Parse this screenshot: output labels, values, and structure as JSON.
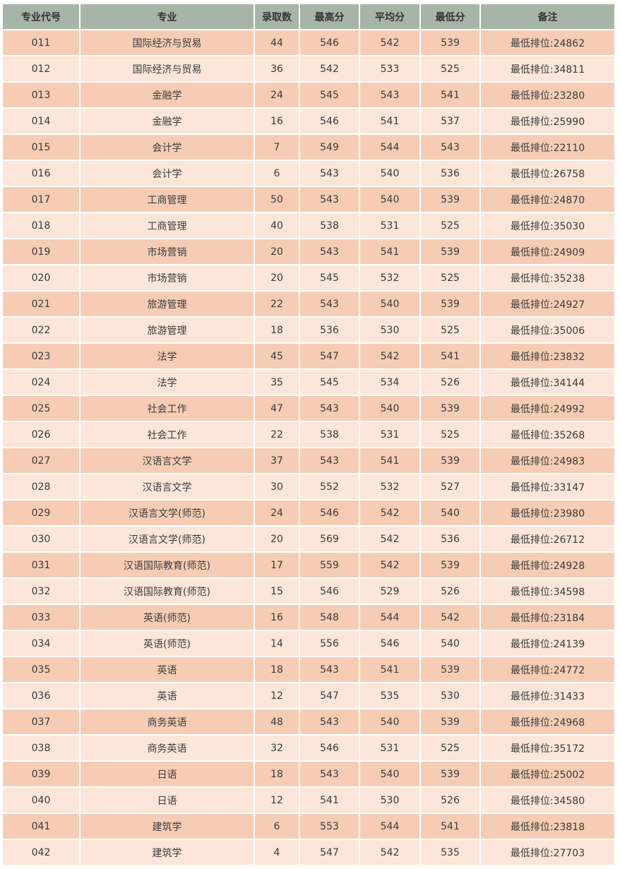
{
  "table": {
    "headers": [
      "专业代号",
      "专业",
      "录取数",
      "最高分",
      "平均分",
      "最低分",
      "备注"
    ],
    "colors": {
      "header": "#a7b4a8",
      "row_odd": "#f6cdb4",
      "row_even": "#fce6d9"
    },
    "rows": [
      [
        "011",
        "国际经济与贸易",
        "44",
        "546",
        "542",
        "539",
        "最低排位:24862"
      ],
      [
        "012",
        "国际经济与贸易",
        "36",
        "542",
        "533",
        "525",
        "最低排位:34811"
      ],
      [
        "013",
        "金融学",
        "24",
        "545",
        "543",
        "541",
        "最低排位:23280"
      ],
      [
        "014",
        "金融学",
        "16",
        "546",
        "541",
        "537",
        "最低排位:25990"
      ],
      [
        "015",
        "会计学",
        "7",
        "549",
        "544",
        "543",
        "最低排位:22110"
      ],
      [
        "016",
        "会计学",
        "6",
        "543",
        "540",
        "536",
        "最低排位:26758"
      ],
      [
        "017",
        "工商管理",
        "50",
        "543",
        "540",
        "539",
        "最低排位:24870"
      ],
      [
        "018",
        "工商管理",
        "40",
        "538",
        "531",
        "525",
        "最低排位:35030"
      ],
      [
        "019",
        "市场营销",
        "20",
        "543",
        "541",
        "539",
        "最低排位:24909"
      ],
      [
        "020",
        "市场营销",
        "20",
        "545",
        "532",
        "525",
        "最低排位:35238"
      ],
      [
        "021",
        "旅游管理",
        "22",
        "543",
        "540",
        "539",
        "最低排位:24927"
      ],
      [
        "022",
        "旅游管理",
        "18",
        "536",
        "530",
        "525",
        "最低排位:35006"
      ],
      [
        "023",
        "法学",
        "45",
        "547",
        "542",
        "541",
        "最低排位:23832"
      ],
      [
        "024",
        "法学",
        "35",
        "545",
        "534",
        "526",
        "最低排位:34144"
      ],
      [
        "025",
        "社会工作",
        "47",
        "543",
        "540",
        "539",
        "最低排位:24992"
      ],
      [
        "026",
        "社会工作",
        "22",
        "538",
        "531",
        "525",
        "最低排位:35268"
      ],
      [
        "027",
        "汉语言文学",
        "37",
        "543",
        "541",
        "539",
        "最低排位:24983"
      ],
      [
        "028",
        "汉语言文学",
        "30",
        "552",
        "532",
        "527",
        "最低排位:33147"
      ],
      [
        "029",
        "汉语言文学(师范)",
        "24",
        "546",
        "542",
        "540",
        "最低排位:23980"
      ],
      [
        "030",
        "汉语言文学(师范)",
        "20",
        "569",
        "542",
        "536",
        "最低排位:26712"
      ],
      [
        "031",
        "汉语国际教育(师范)",
        "17",
        "559",
        "542",
        "539",
        "最低排位:24928"
      ],
      [
        "032",
        "汉语国际教育(师范)",
        "15",
        "546",
        "529",
        "526",
        "最低排位:34598"
      ],
      [
        "033",
        "英语(师范)",
        "16",
        "548",
        "544",
        "542",
        "最低排位:23184"
      ],
      [
        "034",
        "英语(师范)",
        "14",
        "556",
        "546",
        "540",
        "最低排位:24139"
      ],
      [
        "035",
        "英语",
        "18",
        "543",
        "541",
        "539",
        "最低排位:24772"
      ],
      [
        "036",
        "英语",
        "12",
        "547",
        "535",
        "530",
        "最低排位:31433"
      ],
      [
        "037",
        "商务英语",
        "48",
        "543",
        "540",
        "539",
        "最低排位:24968"
      ],
      [
        "038",
        "商务英语",
        "32",
        "546",
        "531",
        "525",
        "最低排位:35172"
      ],
      [
        "039",
        "日语",
        "18",
        "543",
        "540",
        "539",
        "最低排位:25002"
      ],
      [
        "040",
        "日语",
        "12",
        "541",
        "530",
        "526",
        "最低排位:34580"
      ],
      [
        "041",
        "建筑学",
        "6",
        "553",
        "544",
        "541",
        "最低排位:23818"
      ],
      [
        "042",
        "建筑学",
        "4",
        "547",
        "542",
        "535",
        "最低排位:27703"
      ]
    ]
  }
}
